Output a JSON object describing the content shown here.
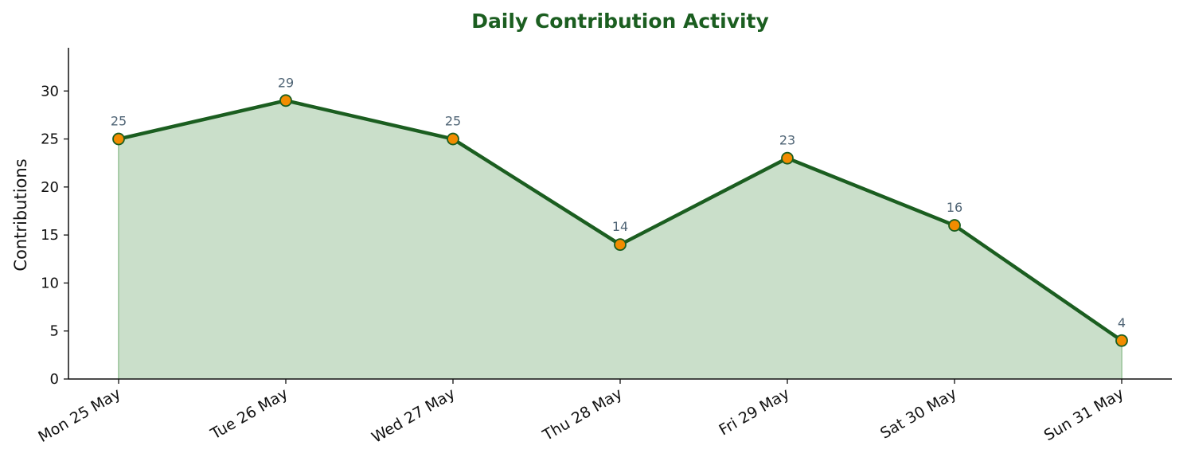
{
  "chart_data": {
    "type": "area",
    "title": "Daily Contribution Activity",
    "xlabel": "",
    "ylabel": "Contributions",
    "categories": [
      "Mon 25 May",
      "Tue 26 May",
      "Wed 27 May",
      "Thu 28 May",
      "Fri 29 May",
      "Sat 30 May",
      "Sun 31 May"
    ],
    "values": [
      25,
      29,
      25,
      14,
      23,
      16,
      4
    ],
    "ylim": [
      0,
      34.5
    ],
    "yticks": [
      0,
      5,
      10,
      15,
      20,
      25,
      30
    ],
    "grid": false,
    "legend": "none",
    "colors": {
      "title": "#1b5e20",
      "line": "#1b5e20",
      "fill": "#cadfca",
      "fill_edge": "#a9cca9",
      "marker_fill": "#f28c00",
      "marker_edge": "#1b5e20",
      "data_label": "#4f6475",
      "axis": "#111111"
    }
  }
}
